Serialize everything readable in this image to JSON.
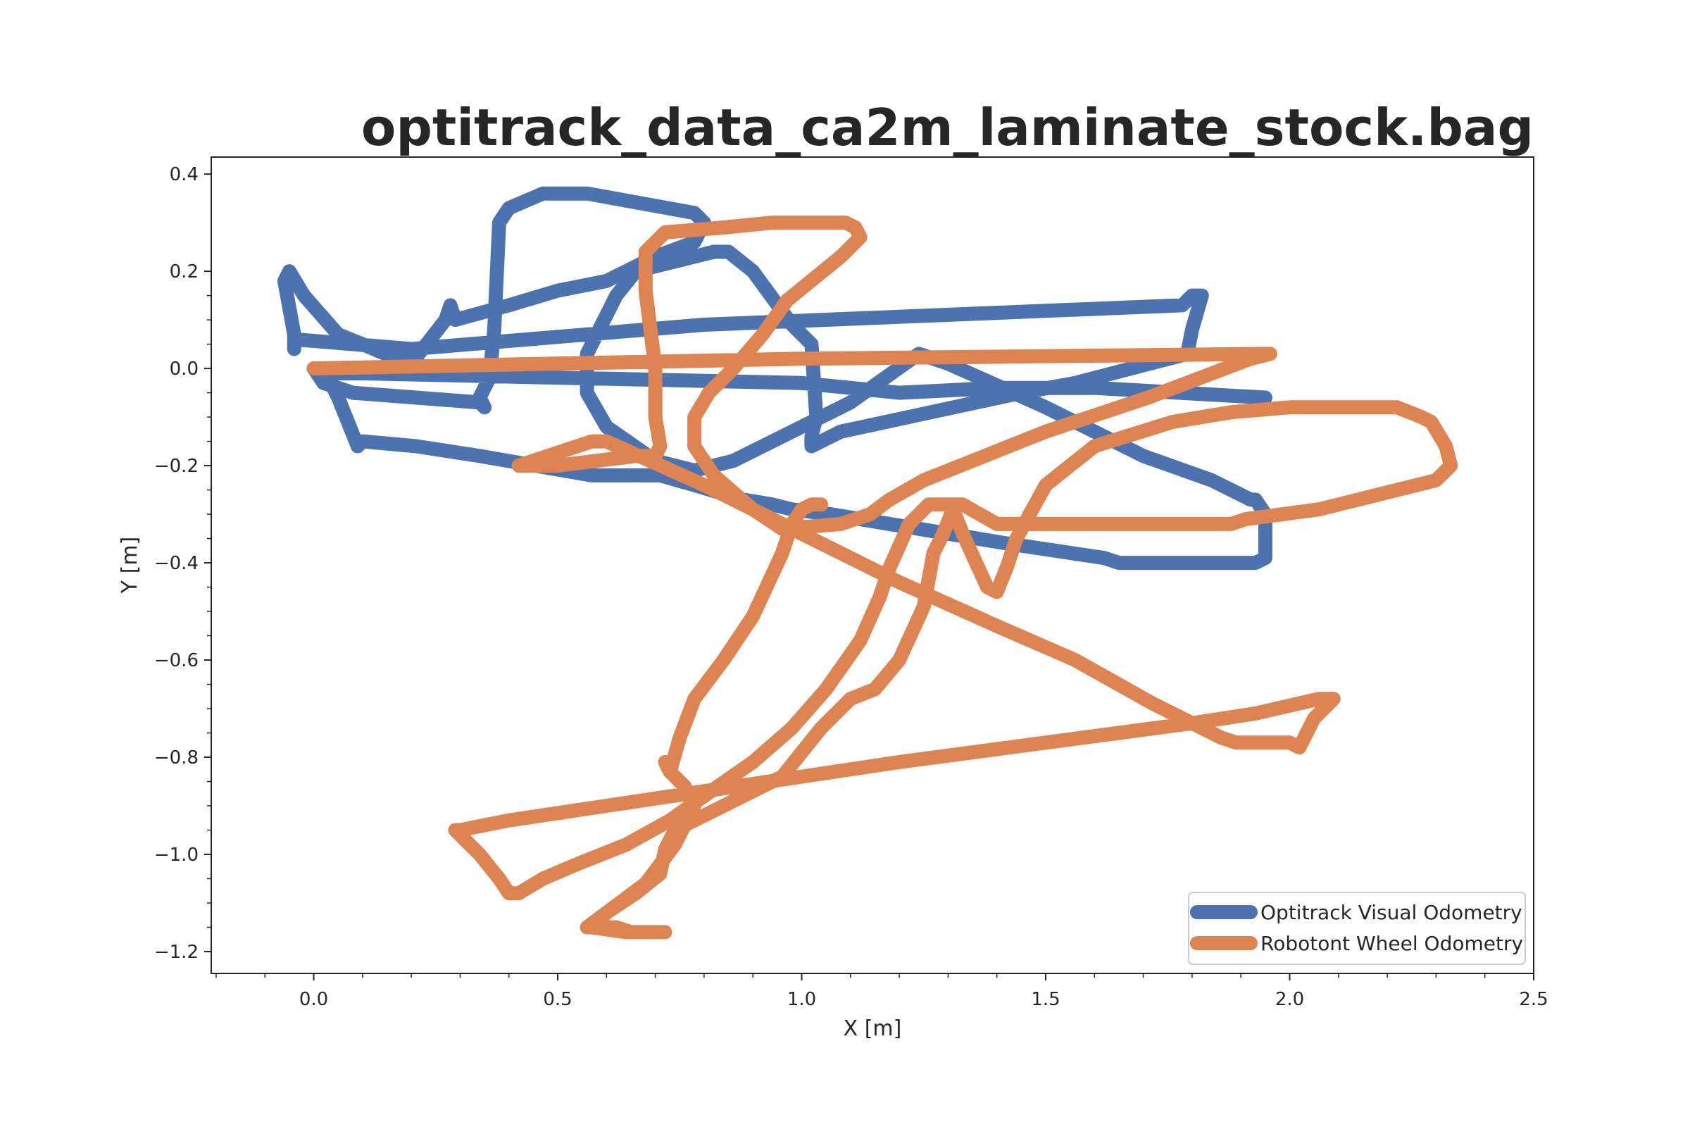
{
  "chart_data": {
    "type": "line",
    "title": "optitrack_data_ca2m_laminate_stock.bag",
    "xlabel": "X [m]",
    "ylabel": "Y [m]",
    "xlim": [
      -0.21,
      2.5
    ],
    "ylim": [
      -1.245,
      0.435
    ],
    "x_ticks": [
      0.0,
      0.5,
      1.0,
      1.5,
      2.0,
      2.5
    ],
    "x_tick_labels": [
      "0.0",
      "0.5",
      "1.0",
      "1.5",
      "2.0",
      "2.5"
    ],
    "y_ticks": [
      0.4,
      0.2,
      0.0,
      -0.2,
      -0.4,
      -0.6,
      -0.8,
      -1.0,
      -1.2
    ],
    "y_tick_labels": [
      "0.4",
      "0.2",
      "0.0",
      "−0.2",
      "−0.4",
      "−0.6",
      "−0.8",
      "−1.0",
      "−1.2"
    ],
    "grid": false,
    "legend_position": "lower-right",
    "series": [
      {
        "name": "Optitrack Visual Odometry",
        "color": "#4c72b0",
        "points": [
          [
            0.0,
            0.0
          ],
          [
            0.02,
            -0.03
          ],
          [
            0.08,
            -0.05
          ],
          [
            0.34,
            -0.07
          ],
          [
            0.35,
            -0.08
          ],
          [
            0.34,
            -0.06
          ],
          [
            0.36,
            -0.02
          ],
          [
            0.37,
            0.08
          ],
          [
            0.38,
            0.3
          ],
          [
            0.4,
            0.33
          ],
          [
            0.47,
            0.36
          ],
          [
            0.56,
            0.36
          ],
          [
            0.78,
            0.32
          ],
          [
            0.8,
            0.3
          ],
          [
            0.79,
            0.28
          ],
          [
            0.78,
            0.26
          ],
          [
            0.7,
            0.23
          ],
          [
            0.6,
            0.18
          ],
          [
            0.5,
            0.16
          ],
          [
            0.4,
            0.13
          ],
          [
            0.29,
            0.1
          ],
          [
            0.28,
            0.13
          ],
          [
            0.27,
            0.1
          ],
          [
            0.2,
            0.01
          ],
          [
            0.17,
            0.02
          ],
          [
            0.1,
            0.05
          ],
          [
            0.05,
            0.07
          ],
          [
            -0.02,
            0.15
          ],
          [
            -0.05,
            0.2
          ],
          [
            -0.06,
            0.18
          ],
          [
            -0.04,
            0.07
          ],
          [
            -0.04,
            0.04
          ],
          [
            -0.04,
            0.06
          ],
          [
            0.2,
            0.04
          ],
          [
            0.8,
            0.09
          ],
          [
            1.78,
            0.13
          ],
          [
            1.8,
            0.15
          ],
          [
            1.82,
            0.15
          ],
          [
            1.8,
            0.08
          ],
          [
            1.79,
            0.03
          ],
          [
            1.56,
            -0.03
          ],
          [
            1.45,
            -0.05
          ],
          [
            1.08,
            -0.13
          ],
          [
            1.02,
            -0.16
          ],
          [
            1.02,
            -0.14
          ],
          [
            1.03,
            -0.1
          ],
          [
            1.02,
            0.05
          ],
          [
            0.98,
            0.09
          ],
          [
            0.9,
            0.2
          ],
          [
            0.85,
            0.24
          ],
          [
            0.82,
            0.24
          ],
          [
            0.66,
            0.2
          ],
          [
            0.62,
            0.15
          ],
          [
            0.59,
            0.09
          ],
          [
            0.56,
            0.03
          ],
          [
            0.56,
            -0.05
          ],
          [
            0.6,
            -0.12
          ],
          [
            0.7,
            -0.19
          ],
          [
            0.78,
            -0.21
          ],
          [
            0.86,
            -0.19
          ],
          [
            1.0,
            -0.12
          ],
          [
            1.1,
            -0.07
          ],
          [
            1.24,
            0.03
          ],
          [
            1.3,
            0.01
          ],
          [
            1.5,
            -0.08
          ],
          [
            1.7,
            -0.18
          ],
          [
            1.84,
            -0.23
          ],
          [
            1.92,
            -0.27
          ],
          [
            1.93,
            -0.27
          ],
          [
            1.95,
            -0.3
          ],
          [
            1.95,
            -0.39
          ],
          [
            1.93,
            -0.4
          ],
          [
            1.65,
            -0.4
          ],
          [
            1.62,
            -0.39
          ],
          [
            1.42,
            -0.36
          ],
          [
            1.24,
            -0.33
          ],
          [
            1.06,
            -0.3
          ],
          [
            0.98,
            -0.29
          ],
          [
            0.94,
            -0.28
          ],
          [
            0.88,
            -0.27
          ],
          [
            0.78,
            -0.24
          ],
          [
            0.71,
            -0.22
          ],
          [
            0.66,
            -0.22
          ],
          [
            0.62,
            -0.22
          ],
          [
            0.59,
            -0.22
          ],
          [
            0.57,
            -0.22
          ],
          [
            0.34,
            -0.18
          ],
          [
            0.21,
            -0.16
          ],
          [
            0.1,
            -0.15
          ],
          [
            0.09,
            -0.16
          ],
          [
            0.05,
            -0.06
          ],
          [
            0.03,
            -0.02
          ],
          [
            0.01,
            -0.01
          ],
          [
            0.1,
            -0.01
          ],
          [
            1.0,
            -0.03
          ],
          [
            1.2,
            -0.05
          ],
          [
            1.4,
            -0.04
          ],
          [
            1.6,
            -0.04
          ],
          [
            1.95,
            -0.06
          ],
          [
            1.94,
            -0.07
          ]
        ]
      },
      {
        "name": "Robotont Wheel Odometry",
        "color": "#dd8452",
        "points": [
          [
            0.0,
            0.0
          ],
          [
            1.0,
            0.02
          ],
          [
            1.96,
            0.03
          ],
          [
            1.92,
            0.02
          ],
          [
            1.71,
            -0.06
          ],
          [
            1.5,
            -0.13
          ],
          [
            1.25,
            -0.23
          ],
          [
            1.18,
            -0.27
          ],
          [
            1.14,
            -0.3
          ],
          [
            1.08,
            -0.32
          ],
          [
            0.96,
            -0.33
          ],
          [
            0.9,
            -0.29
          ],
          [
            0.82,
            -0.22
          ],
          [
            0.78,
            -0.16
          ],
          [
            0.78,
            -0.1
          ],
          [
            0.81,
            -0.05
          ],
          [
            0.86,
            0.0
          ],
          [
            0.92,
            0.07
          ],
          [
            0.97,
            0.14
          ],
          [
            1.08,
            0.23
          ],
          [
            1.12,
            0.27
          ],
          [
            1.11,
            0.29
          ],
          [
            1.09,
            0.3
          ],
          [
            0.94,
            0.3
          ],
          [
            0.84,
            0.29
          ],
          [
            0.72,
            0.28
          ],
          [
            0.7,
            0.26
          ],
          [
            0.68,
            0.24
          ],
          [
            0.68,
            0.16
          ],
          [
            0.7,
            0.0
          ],
          [
            0.7,
            -0.1
          ],
          [
            0.71,
            -0.16
          ],
          [
            0.7,
            -0.18
          ],
          [
            0.66,
            -0.18
          ],
          [
            0.5,
            -0.2
          ],
          [
            0.44,
            -0.2
          ],
          [
            0.42,
            -0.2
          ],
          [
            0.48,
            -0.18
          ],
          [
            0.57,
            -0.15
          ],
          [
            0.6,
            -0.15
          ],
          [
            0.8,
            -0.24
          ],
          [
            1.0,
            -0.34
          ],
          [
            1.2,
            -0.44
          ],
          [
            1.4,
            -0.53
          ],
          [
            1.56,
            -0.6
          ],
          [
            1.72,
            -0.69
          ],
          [
            1.82,
            -0.74
          ],
          [
            1.86,
            -0.76
          ],
          [
            1.89,
            -0.77
          ],
          [
            1.96,
            -0.77
          ],
          [
            2.0,
            -0.77
          ],
          [
            2.02,
            -0.78
          ],
          [
            2.03,
            -0.76
          ],
          [
            2.05,
            -0.72
          ],
          [
            2.07,
            -0.7
          ],
          [
            2.09,
            -0.68
          ],
          [
            2.06,
            -0.68
          ],
          [
            1.93,
            -0.71
          ],
          [
            1.8,
            -0.73
          ],
          [
            1.5,
            -0.77
          ],
          [
            1.2,
            -0.81
          ],
          [
            1.0,
            -0.84
          ],
          [
            0.8,
            -0.87
          ],
          [
            0.6,
            -0.9
          ],
          [
            0.4,
            -0.93
          ],
          [
            0.3,
            -0.95
          ],
          [
            0.29,
            -0.95
          ],
          [
            0.34,
            -1.0
          ],
          [
            0.38,
            -1.05
          ],
          [
            0.4,
            -1.08
          ],
          [
            0.42,
            -1.08
          ],
          [
            0.47,
            -1.05
          ],
          [
            0.54,
            -1.02
          ],
          [
            0.64,
            -0.98
          ],
          [
            0.73,
            -0.93
          ],
          [
            0.8,
            -0.88
          ],
          [
            0.9,
            -0.81
          ],
          [
            0.98,
            -0.74
          ],
          [
            1.05,
            -0.66
          ],
          [
            1.12,
            -0.56
          ],
          [
            1.16,
            -0.47
          ],
          [
            1.18,
            -0.41
          ],
          [
            1.22,
            -0.32
          ],
          [
            1.26,
            -0.28
          ],
          [
            1.33,
            -0.28
          ],
          [
            1.4,
            -0.32
          ],
          [
            1.55,
            -0.32
          ],
          [
            1.75,
            -0.32
          ],
          [
            1.88,
            -0.32
          ],
          [
            1.91,
            -0.31
          ],
          [
            2.06,
            -0.29
          ],
          [
            2.18,
            -0.26
          ],
          [
            2.3,
            -0.23
          ],
          [
            2.33,
            -0.2
          ],
          [
            2.32,
            -0.16
          ],
          [
            2.29,
            -0.11
          ],
          [
            2.27,
            -0.1
          ],
          [
            2.22,
            -0.08
          ],
          [
            2.12,
            -0.08
          ],
          [
            2.0,
            -0.08
          ],
          [
            1.88,
            -0.09
          ],
          [
            1.76,
            -0.11
          ],
          [
            1.6,
            -0.16
          ],
          [
            1.5,
            -0.24
          ],
          [
            1.44,
            -0.35
          ],
          [
            1.42,
            -0.41
          ],
          [
            1.4,
            -0.46
          ],
          [
            1.38,
            -0.45
          ],
          [
            1.33,
            -0.34
          ],
          [
            1.31,
            -0.29
          ],
          [
            1.29,
            -0.34
          ],
          [
            1.27,
            -0.38
          ],
          [
            1.25,
            -0.49
          ],
          [
            1.2,
            -0.6
          ],
          [
            1.15,
            -0.66
          ],
          [
            1.1,
            -0.68
          ],
          [
            1.04,
            -0.74
          ],
          [
            0.96,
            -0.84
          ],
          [
            0.9,
            -0.87
          ],
          [
            0.82,
            -0.91
          ],
          [
            0.74,
            -0.95
          ],
          [
            0.72,
            -0.99
          ],
          [
            0.71,
            -1.04
          ],
          [
            0.66,
            -1.08
          ],
          [
            0.6,
            -1.12
          ],
          [
            0.56,
            -1.15
          ],
          [
            0.62,
            -1.15
          ],
          [
            0.65,
            -1.16
          ],
          [
            0.7,
            -1.16
          ],
          [
            0.72,
            -1.16
          ],
          [
            0.67,
            -1.16
          ],
          [
            0.64,
            -1.16
          ],
          [
            0.57,
            -1.15
          ],
          [
            0.6,
            -1.12
          ],
          [
            0.68,
            -1.06
          ],
          [
            0.74,
            -0.98
          ],
          [
            0.78,
            -0.9
          ],
          [
            0.76,
            -0.86
          ],
          [
            0.73,
            -0.83
          ],
          [
            0.72,
            -0.81
          ],
          [
            0.73,
            -0.83
          ],
          [
            0.75,
            -0.76
          ],
          [
            0.78,
            -0.68
          ],
          [
            0.84,
            -0.6
          ],
          [
            0.9,
            -0.51
          ],
          [
            0.96,
            -0.38
          ],
          [
            0.98,
            -0.32
          ],
          [
            1.0,
            -0.29
          ],
          [
            1.02,
            -0.28
          ],
          [
            1.04,
            -0.28
          ]
        ]
      }
    ]
  }
}
